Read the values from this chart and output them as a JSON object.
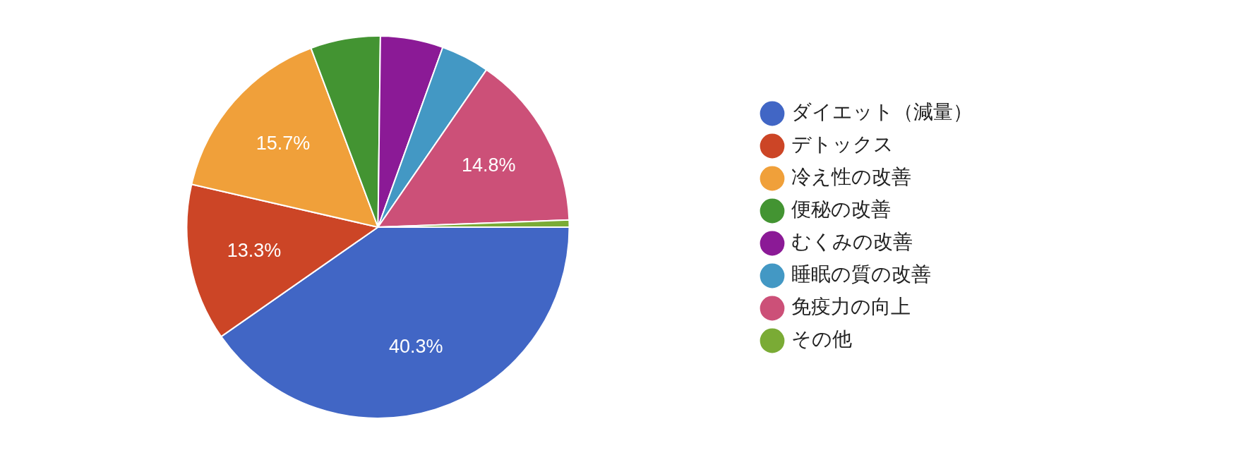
{
  "chart_data": {
    "type": "pie",
    "categories": [
      "ダイエット（減量）",
      "デトックス",
      "冷え性の改善",
      "便秘の改善",
      "むくみの改善",
      "睡眠の質の改善",
      "免疫力の向上",
      "その他"
    ],
    "values": [
      40.3,
      13.3,
      15.7,
      5.9,
      5.3,
      4.1,
      14.8,
      0.6
    ],
    "value_labels": [
      "40.3%",
      "13.3%",
      "15.7%",
      null,
      null,
      null,
      "14.8%",
      null
    ],
    "colors": [
      "#4166c5",
      "#cc4526",
      "#f0a03a",
      "#439432",
      "#8b1a96",
      "#4398c4",
      "#cc5078",
      "#7aab35"
    ],
    "legend": "right"
  }
}
